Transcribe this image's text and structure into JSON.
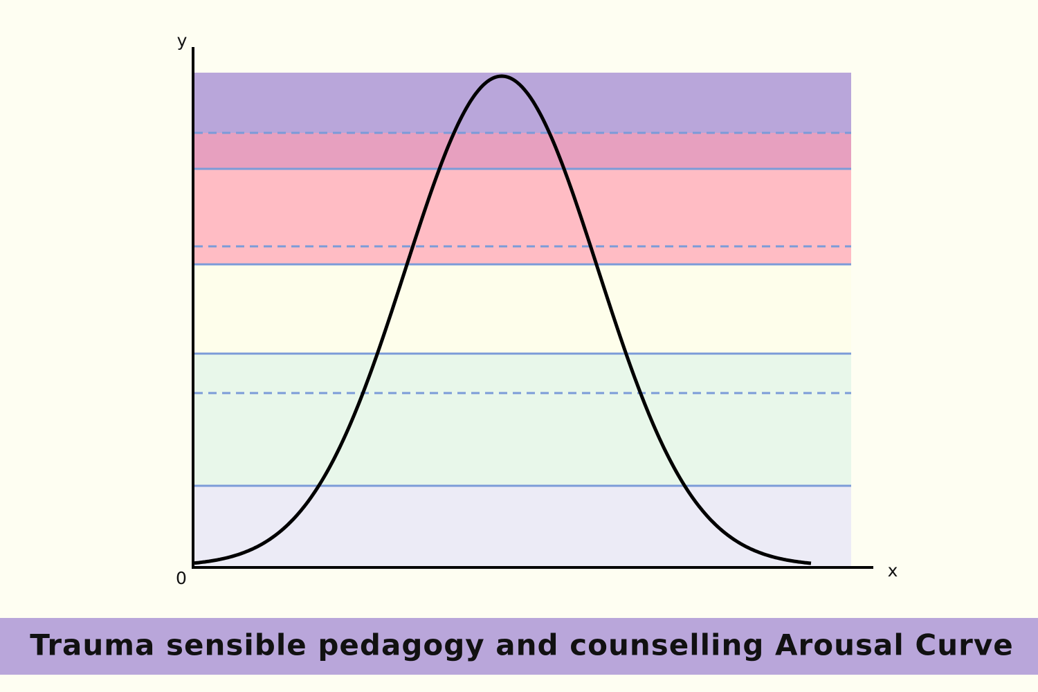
{
  "diagram": {
    "y_axis_label": "y",
    "x_axis_label": "x",
    "origin_label": "0"
  },
  "footer": {
    "title": "Trauma sensible pedagogy and counselling Arousal Curve"
  }
}
